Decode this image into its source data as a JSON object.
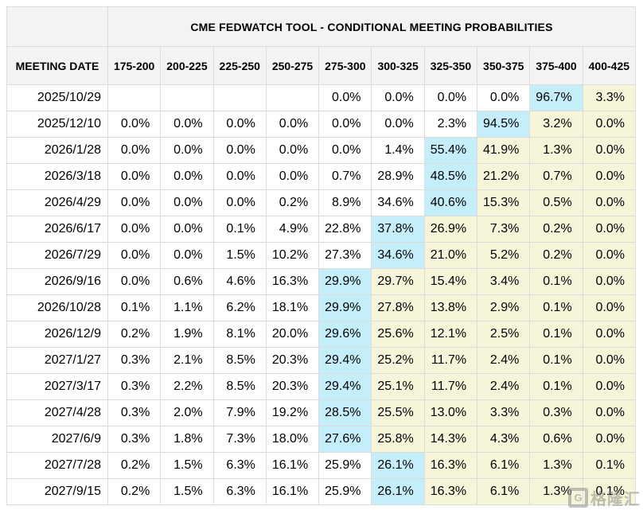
{
  "colors": {
    "highlight_blue": "#c3eefa",
    "highlight_yellow": "#f6f5da",
    "header_bg": "#f3f3f3",
    "border": "#dcdcdc",
    "border_outer": "#c9c9c9"
  },
  "watermark": {
    "logo_letter": "G",
    "text": "格隆汇"
  },
  "chart_data": {
    "type": "table",
    "title": "CME FEDWATCH TOOL - CONDITIONAL MEETING PROBABILITIES",
    "row_header": "MEETING DATE",
    "columns": [
      "175-200",
      "200-225",
      "225-250",
      "250-275",
      "275-300",
      "300-325",
      "325-350",
      "350-375",
      "375-400",
      "400-425"
    ],
    "highlight_meaning": {
      "blue": "highest probability cell",
      "yellow": "cells above highest probability range"
    },
    "rows": [
      {
        "date": "2025/10/29",
        "values": [
          "",
          "",
          "",
          "",
          "0.0%",
          "0.0%",
          "0.0%",
          "0.0%",
          "96.7%",
          "3.3%"
        ],
        "highlight": [
          "",
          "",
          "",
          "",
          "",
          "",
          "",
          "",
          "blue",
          "yellow"
        ]
      },
      {
        "date": "2025/12/10",
        "values": [
          "0.0%",
          "0.0%",
          "0.0%",
          "0.0%",
          "0.0%",
          "0.0%",
          "2.3%",
          "94.5%",
          "3.2%",
          "0.0%"
        ],
        "highlight": [
          "",
          "",
          "",
          "",
          "",
          "",
          "",
          "blue",
          "yellow",
          "yellow"
        ]
      },
      {
        "date": "2026/1/28",
        "values": [
          "0.0%",
          "0.0%",
          "0.0%",
          "0.0%",
          "0.0%",
          "1.4%",
          "55.4%",
          "41.9%",
          "1.3%",
          "0.0%"
        ],
        "highlight": [
          "",
          "",
          "",
          "",
          "",
          "",
          "blue",
          "yellow",
          "yellow",
          "yellow"
        ]
      },
      {
        "date": "2026/3/18",
        "values": [
          "0.0%",
          "0.0%",
          "0.0%",
          "0.0%",
          "0.7%",
          "28.9%",
          "48.5%",
          "21.2%",
          "0.7%",
          "0.0%"
        ],
        "highlight": [
          "",
          "",
          "",
          "",
          "",
          "",
          "blue",
          "yellow",
          "yellow",
          "yellow"
        ]
      },
      {
        "date": "2026/4/29",
        "values": [
          "0.0%",
          "0.0%",
          "0.0%",
          "0.2%",
          "8.9%",
          "34.6%",
          "40.6%",
          "15.3%",
          "0.5%",
          "0.0%"
        ],
        "highlight": [
          "",
          "",
          "",
          "",
          "",
          "",
          "blue",
          "yellow",
          "yellow",
          "yellow"
        ]
      },
      {
        "date": "2026/6/17",
        "values": [
          "0.0%",
          "0.0%",
          "0.1%",
          "4.9%",
          "22.8%",
          "37.8%",
          "26.9%",
          "7.3%",
          "0.2%",
          "0.0%"
        ],
        "highlight": [
          "",
          "",
          "",
          "",
          "",
          "blue",
          "yellow",
          "yellow",
          "yellow",
          "yellow"
        ]
      },
      {
        "date": "2026/7/29",
        "values": [
          "0.0%",
          "0.0%",
          "1.5%",
          "10.2%",
          "27.3%",
          "34.6%",
          "21.0%",
          "5.2%",
          "0.2%",
          "0.0%"
        ],
        "highlight": [
          "",
          "",
          "",
          "",
          "",
          "blue",
          "yellow",
          "yellow",
          "yellow",
          "yellow"
        ]
      },
      {
        "date": "2026/9/16",
        "values": [
          "0.0%",
          "0.6%",
          "4.6%",
          "16.3%",
          "29.9%",
          "29.7%",
          "15.4%",
          "3.4%",
          "0.1%",
          "0.0%"
        ],
        "highlight": [
          "",
          "",
          "",
          "",
          "blue",
          "yellow",
          "yellow",
          "yellow",
          "yellow",
          "yellow"
        ]
      },
      {
        "date": "2026/10/28",
        "values": [
          "0.1%",
          "1.1%",
          "6.2%",
          "18.1%",
          "29.9%",
          "27.8%",
          "13.8%",
          "2.9%",
          "0.1%",
          "0.0%"
        ],
        "highlight": [
          "",
          "",
          "",
          "",
          "blue",
          "yellow",
          "yellow",
          "yellow",
          "yellow",
          "yellow"
        ]
      },
      {
        "date": "2026/12/9",
        "values": [
          "0.2%",
          "1.9%",
          "8.1%",
          "20.0%",
          "29.6%",
          "25.6%",
          "12.1%",
          "2.5%",
          "0.1%",
          "0.0%"
        ],
        "highlight": [
          "",
          "",
          "",
          "",
          "blue",
          "yellow",
          "yellow",
          "yellow",
          "yellow",
          "yellow"
        ]
      },
      {
        "date": "2027/1/27",
        "values": [
          "0.3%",
          "2.1%",
          "8.5%",
          "20.3%",
          "29.4%",
          "25.2%",
          "11.7%",
          "2.4%",
          "0.1%",
          "0.0%"
        ],
        "highlight": [
          "",
          "",
          "",
          "",
          "blue",
          "yellow",
          "yellow",
          "yellow",
          "yellow",
          "yellow"
        ]
      },
      {
        "date": "2027/3/17",
        "values": [
          "0.3%",
          "2.2%",
          "8.5%",
          "20.3%",
          "29.4%",
          "25.1%",
          "11.7%",
          "2.4%",
          "0.1%",
          "0.0%"
        ],
        "highlight": [
          "",
          "",
          "",
          "",
          "blue",
          "yellow",
          "yellow",
          "yellow",
          "yellow",
          "yellow"
        ]
      },
      {
        "date": "2027/4/28",
        "values": [
          "0.3%",
          "2.0%",
          "7.9%",
          "19.2%",
          "28.5%",
          "25.5%",
          "13.0%",
          "3.3%",
          "0.3%",
          "0.0%"
        ],
        "highlight": [
          "",
          "",
          "",
          "",
          "blue",
          "yellow",
          "yellow",
          "yellow",
          "yellow",
          "yellow"
        ]
      },
      {
        "date": "2027/6/9",
        "values": [
          "0.3%",
          "1.8%",
          "7.3%",
          "18.0%",
          "27.6%",
          "25.8%",
          "14.3%",
          "4.3%",
          "0.6%",
          "0.0%"
        ],
        "highlight": [
          "",
          "",
          "",
          "",
          "blue",
          "yellow",
          "yellow",
          "yellow",
          "yellow",
          "yellow"
        ]
      },
      {
        "date": "2027/7/28",
        "values": [
          "0.2%",
          "1.5%",
          "6.3%",
          "16.1%",
          "25.9%",
          "26.1%",
          "16.3%",
          "6.1%",
          "1.3%",
          "0.1%"
        ],
        "highlight": [
          "",
          "",
          "",
          "",
          "",
          "blue",
          "yellow",
          "yellow",
          "yellow",
          "yellow"
        ]
      },
      {
        "date": "2027/9/15",
        "values": [
          "0.2%",
          "1.5%",
          "6.3%",
          "16.1%",
          "25.9%",
          "26.1%",
          "16.3%",
          "6.1%",
          "1.3%",
          "0.1%"
        ],
        "highlight": [
          "",
          "",
          "",
          "",
          "",
          "blue",
          "yellow",
          "yellow",
          "yellow",
          "yellow"
        ]
      }
    ]
  }
}
